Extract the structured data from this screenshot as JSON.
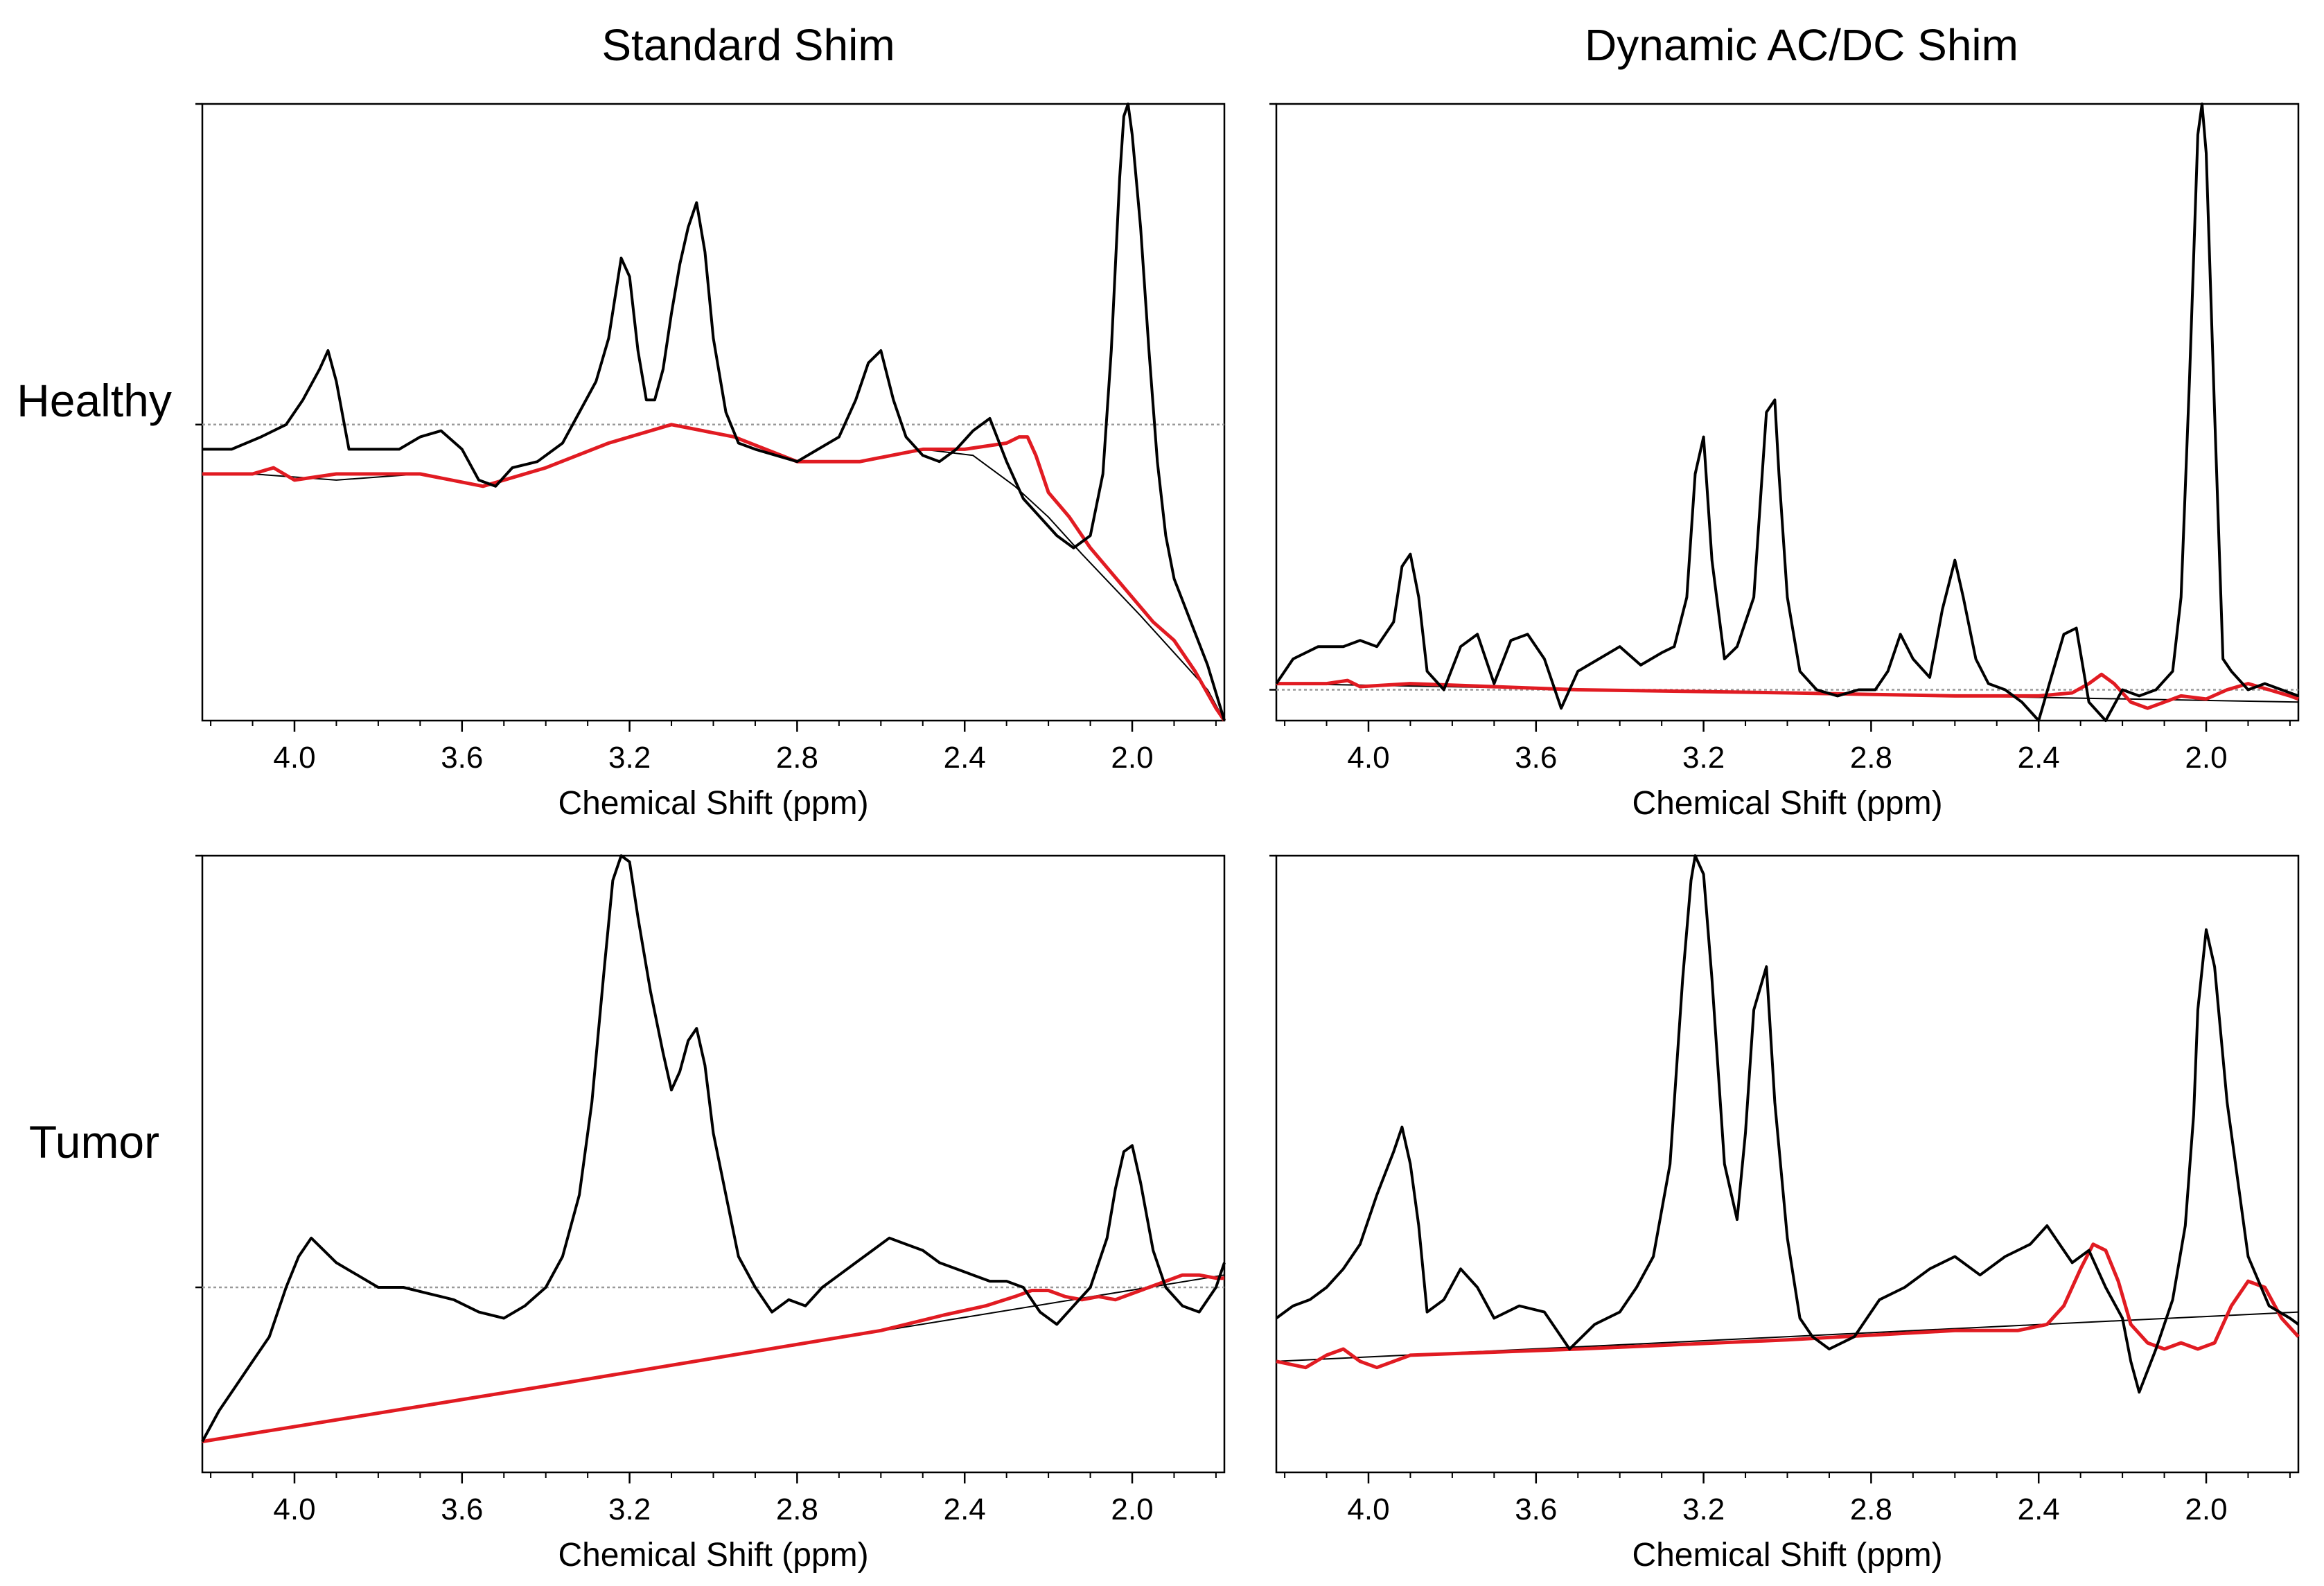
{
  "figure": {
    "columns": [
      "Standard Shim",
      "Dynamic AC/DC Shim"
    ],
    "rows": [
      "Healthy",
      "Tumor"
    ]
  },
  "colors": {
    "spectrum": "#000000",
    "fit": "#e11b22",
    "baseline": "#000000",
    "reference": "#999999",
    "axis": "#000000"
  },
  "chart_data": [
    {
      "type": "line",
      "panel": "healthy-standard",
      "title": "Standard Shim",
      "row": "Healthy",
      "xlabel": "Chemical Shift (ppm)",
      "ylabel": "",
      "xlim": [
        4.22,
        1.78
      ],
      "ylim": [
        0,
        1.0
      ],
      "xticks": [
        4.0,
        3.6,
        3.2,
        2.8,
        2.4,
        2.0
      ],
      "reference_y": 0.48,
      "series": [
        {
          "name": "spectrum",
          "x": [
            4.22,
            4.15,
            4.08,
            4.02,
            3.98,
            3.94,
            3.92,
            3.9,
            3.87,
            3.82,
            3.75,
            3.7,
            3.65,
            3.6,
            3.56,
            3.52,
            3.48,
            3.42,
            3.36,
            3.32,
            3.28,
            3.25,
            3.22,
            3.2,
            3.18,
            3.16,
            3.14,
            3.12,
            3.1,
            3.08,
            3.06,
            3.04,
            3.02,
            3.0,
            2.97,
            2.94,
            2.9,
            2.85,
            2.8,
            2.75,
            2.7,
            2.66,
            2.63,
            2.6,
            2.57,
            2.54,
            2.5,
            2.46,
            2.42,
            2.38,
            2.34,
            2.3,
            2.26,
            2.22,
            2.18,
            2.14,
            2.1,
            2.07,
            2.05,
            2.03,
            2.02,
            2.01,
            2.0,
            1.98,
            1.96,
            1.94,
            1.92,
            1.9,
            1.86,
            1.82,
            1.78
          ],
          "values": [
            0.44,
            0.44,
            0.46,
            0.48,
            0.52,
            0.57,
            0.6,
            0.55,
            0.44,
            0.44,
            0.44,
            0.46,
            0.47,
            0.44,
            0.39,
            0.38,
            0.41,
            0.42,
            0.45,
            0.5,
            0.55,
            0.62,
            0.75,
            0.72,
            0.6,
            0.52,
            0.52,
            0.57,
            0.66,
            0.74,
            0.8,
            0.84,
            0.76,
            0.62,
            0.5,
            0.45,
            0.44,
            0.43,
            0.42,
            0.44,
            0.46,
            0.52,
            0.58,
            0.6,
            0.52,
            0.46,
            0.43,
            0.42,
            0.44,
            0.47,
            0.49,
            0.42,
            0.36,
            0.33,
            0.3,
            0.28,
            0.3,
            0.4,
            0.6,
            0.88,
            0.98,
            1.0,
            0.95,
            0.8,
            0.6,
            0.42,
            0.3,
            0.23,
            0.16,
            0.09,
            0.0
          ]
        },
        {
          "name": "baseline",
          "x": [
            4.22,
            4.1,
            3.9,
            3.7,
            3.55,
            3.4,
            3.25,
            3.1,
            2.95,
            2.8,
            2.65,
            2.5,
            2.38,
            2.28,
            2.2,
            2.12,
            2.05,
            1.98,
            1.9,
            1.82,
            1.78
          ],
          "values": [
            0.4,
            0.4,
            0.39,
            0.4,
            0.38,
            0.41,
            0.45,
            0.48,
            0.46,
            0.42,
            0.42,
            0.44,
            0.43,
            0.38,
            0.33,
            0.27,
            0.22,
            0.17,
            0.11,
            0.05,
            0.0
          ]
        },
        {
          "name": "fit",
          "x": [
            4.22,
            4.1,
            4.05,
            4.0,
            3.9,
            3.7,
            3.55,
            3.4,
            3.25,
            3.1,
            2.95,
            2.8,
            2.65,
            2.5,
            2.4,
            2.3,
            2.27,
            2.25,
            2.23,
            2.2,
            2.15,
            2.1,
            2.05,
            2.0,
            1.95,
            1.9,
            1.85,
            1.8,
            1.78
          ],
          "values": [
            0.4,
            0.4,
            0.41,
            0.39,
            0.4,
            0.4,
            0.38,
            0.41,
            0.45,
            0.48,
            0.46,
            0.42,
            0.42,
            0.44,
            0.44,
            0.45,
            0.46,
            0.46,
            0.43,
            0.37,
            0.33,
            0.28,
            0.24,
            0.2,
            0.16,
            0.13,
            0.08,
            0.02,
            0.0
          ]
        }
      ]
    },
    {
      "type": "line",
      "panel": "healthy-dynamic",
      "title": "Dynamic AC/DC Shim",
      "row": "Healthy",
      "xlabel": "Chemical Shift (ppm)",
      "ylabel": "",
      "xlim": [
        4.22,
        1.78
      ],
      "ylim": [
        0,
        1.0
      ],
      "xticks": [
        4.0,
        3.6,
        3.2,
        2.8,
        2.4,
        2.0
      ],
      "reference_y": 0.05,
      "series": [
        {
          "name": "spectrum",
          "x": [
            4.22,
            4.18,
            4.12,
            4.06,
            4.02,
            3.98,
            3.94,
            3.92,
            3.9,
            3.88,
            3.86,
            3.82,
            3.78,
            3.74,
            3.7,
            3.66,
            3.62,
            3.58,
            3.54,
            3.5,
            3.45,
            3.4,
            3.35,
            3.3,
            3.27,
            3.24,
            3.22,
            3.2,
            3.18,
            3.15,
            3.12,
            3.08,
            3.05,
            3.03,
            3.02,
            3.0,
            2.97,
            2.93,
            2.88,
            2.83,
            2.79,
            2.76,
            2.73,
            2.7,
            2.66,
            2.63,
            2.6,
            2.58,
            2.55,
            2.52,
            2.48,
            2.44,
            2.4,
            2.37,
            2.34,
            2.31,
            2.28,
            2.24,
            2.2,
            2.16,
            2.12,
            2.08,
            2.06,
            2.04,
            2.02,
            2.01,
            2.0,
            1.98,
            1.96,
            1.94,
            1.9,
            1.86,
            1.82,
            1.78
          ],
          "values": [
            0.06,
            0.1,
            0.12,
            0.12,
            0.13,
            0.12,
            0.16,
            0.25,
            0.27,
            0.2,
            0.08,
            0.05,
            0.12,
            0.14,
            0.06,
            0.13,
            0.14,
            0.1,
            0.02,
            0.08,
            0.1,
            0.12,
            0.09,
            0.11,
            0.12,
            0.2,
            0.4,
            0.46,
            0.26,
            0.1,
            0.12,
            0.2,
            0.5,
            0.52,
            0.4,
            0.2,
            0.08,
            0.05,
            0.04,
            0.05,
            0.05,
            0.08,
            0.14,
            0.1,
            0.07,
            0.18,
            0.26,
            0.2,
            0.1,
            0.06,
            0.05,
            0.03,
            0.0,
            0.07,
            0.14,
            0.15,
            0.03,
            0.0,
            0.05,
            0.04,
            0.05,
            0.08,
            0.2,
            0.55,
            0.95,
            1.0,
            0.92,
            0.5,
            0.1,
            0.08,
            0.05,
            0.06,
            0.05,
            0.04
          ]
        },
        {
          "name": "baseline",
          "x": [
            4.22,
            1.78
          ],
          "values": [
            0.06,
            0.03
          ]
        },
        {
          "name": "fit",
          "x": [
            4.22,
            4.1,
            4.05,
            4.02,
            3.9,
            3.5,
            3.0,
            2.6,
            2.4,
            2.32,
            2.28,
            2.25,
            2.22,
            2.18,
            2.14,
            2.1,
            2.06,
            2.0,
            1.95,
            1.9,
            1.85,
            1.8,
            1.78
          ],
          "values": [
            0.06,
            0.06,
            0.065,
            0.055,
            0.06,
            0.05,
            0.045,
            0.04,
            0.04,
            0.045,
            0.06,
            0.075,
            0.06,
            0.03,
            0.02,
            0.03,
            0.04,
            0.035,
            0.05,
            0.06,
            0.05,
            0.04,
            0.035
          ]
        }
      ]
    },
    {
      "type": "line",
      "panel": "tumor-standard",
      "title": "Standard Shim",
      "row": "Tumor",
      "xlabel": "Chemical Shift (ppm)",
      "ylabel": "",
      "xlim": [
        4.22,
        1.78
      ],
      "ylim": [
        0,
        1.0
      ],
      "xticks": [
        4.0,
        3.6,
        3.2,
        2.8,
        2.4,
        2.0
      ],
      "reference_y": 0.3,
      "series": [
        {
          "name": "spectrum",
          "x": [
            4.22,
            4.18,
            4.14,
            4.1,
            4.06,
            4.02,
            3.99,
            3.96,
            3.93,
            3.9,
            3.85,
            3.8,
            3.74,
            3.68,
            3.62,
            3.56,
            3.5,
            3.45,
            3.4,
            3.36,
            3.32,
            3.29,
            3.26,
            3.24,
            3.22,
            3.2,
            3.18,
            3.15,
            3.12,
            3.1,
            3.08,
            3.06,
            3.04,
            3.02,
            3.0,
            2.97,
            2.94,
            2.9,
            2.86,
            2.82,
            2.78,
            2.74,
            2.7,
            2.66,
            2.62,
            2.58,
            2.54,
            2.5,
            2.46,
            2.42,
            2.38,
            2.34,
            2.3,
            2.26,
            2.22,
            2.18,
            2.14,
            2.1,
            2.06,
            2.04,
            2.02,
            2.0,
            1.98,
            1.95,
            1.92,
            1.88,
            1.84,
            1.8,
            1.78
          ],
          "values": [
            0.05,
            0.1,
            0.14,
            0.18,
            0.22,
            0.3,
            0.35,
            0.38,
            0.36,
            0.34,
            0.32,
            0.3,
            0.3,
            0.29,
            0.28,
            0.26,
            0.25,
            0.27,
            0.3,
            0.35,
            0.45,
            0.6,
            0.82,
            0.96,
            1.0,
            0.99,
            0.9,
            0.78,
            0.68,
            0.62,
            0.65,
            0.7,
            0.72,
            0.66,
            0.55,
            0.45,
            0.35,
            0.3,
            0.26,
            0.28,
            0.27,
            0.3,
            0.32,
            0.34,
            0.36,
            0.38,
            0.37,
            0.36,
            0.34,
            0.33,
            0.32,
            0.31,
            0.31,
            0.3,
            0.26,
            0.24,
            0.27,
            0.3,
            0.38,
            0.46,
            0.52,
            0.53,
            0.47,
            0.36,
            0.3,
            0.27,
            0.26,
            0.3,
            0.34
          ]
        },
        {
          "name": "baseline",
          "x": [
            4.22,
            1.78
          ],
          "values": [
            0.05,
            0.32
          ]
        },
        {
          "name": "fit",
          "x": [
            4.22,
            3.4,
            2.6,
            2.45,
            2.35,
            2.28,
            2.24,
            2.2,
            2.16,
            2.12,
            2.08,
            2.04,
            2.0,
            1.96,
            1.92,
            1.88,
            1.84,
            1.8,
            1.78
          ],
          "values": [
            0.05,
            0.14,
            0.23,
            0.255,
            0.27,
            0.285,
            0.295,
            0.295,
            0.285,
            0.28,
            0.285,
            0.28,
            0.29,
            0.3,
            0.31,
            0.32,
            0.32,
            0.315,
            0.315
          ]
        }
      ]
    },
    {
      "type": "line",
      "panel": "tumor-dynamic",
      "title": "Dynamic AC/DC Shim",
      "row": "Tumor",
      "xlabel": "Chemical Shift (ppm)",
      "ylabel": "",
      "xlim": [
        4.22,
        1.78
      ],
      "ylim": [
        0,
        1.0
      ],
      "xticks": [
        4.0,
        3.6,
        3.2,
        2.8,
        2.4,
        2.0
      ],
      "reference_y": null,
      "series": [
        {
          "name": "spectrum",
          "x": [
            4.22,
            4.18,
            4.14,
            4.1,
            4.06,
            4.02,
            3.98,
            3.94,
            3.92,
            3.9,
            3.88,
            3.86,
            3.82,
            3.78,
            3.74,
            3.7,
            3.64,
            3.58,
            3.52,
            3.46,
            3.4,
            3.36,
            3.32,
            3.28,
            3.25,
            3.23,
            3.22,
            3.2,
            3.18,
            3.15,
            3.12,
            3.1,
            3.08,
            3.05,
            3.03,
            3.0,
            2.97,
            2.94,
            2.9,
            2.84,
            2.78,
            2.72,
            2.66,
            2.6,
            2.54,
            2.48,
            2.42,
            2.38,
            2.35,
            2.32,
            2.28,
            2.24,
            2.2,
            2.18,
            2.16,
            2.12,
            2.08,
            2.05,
            2.03,
            2.02,
            2.0,
            1.98,
            1.95,
            1.9,
            1.85,
            1.8,
            1.78
          ],
          "values": [
            0.25,
            0.27,
            0.28,
            0.3,
            0.33,
            0.37,
            0.45,
            0.52,
            0.56,
            0.5,
            0.4,
            0.26,
            0.28,
            0.33,
            0.3,
            0.25,
            0.27,
            0.26,
            0.2,
            0.24,
            0.26,
            0.3,
            0.35,
            0.5,
            0.8,
            0.96,
            1.0,
            0.97,
            0.8,
            0.5,
            0.41,
            0.55,
            0.75,
            0.82,
            0.6,
            0.38,
            0.25,
            0.22,
            0.2,
            0.22,
            0.28,
            0.3,
            0.33,
            0.35,
            0.32,
            0.35,
            0.37,
            0.4,
            0.37,
            0.34,
            0.36,
            0.3,
            0.25,
            0.18,
            0.13,
            0.2,
            0.28,
            0.4,
            0.58,
            0.75,
            0.88,
            0.82,
            0.6,
            0.35,
            0.27,
            0.25,
            0.24
          ]
        },
        {
          "name": "baseline",
          "x": [
            4.22,
            1.78
          ],
          "values": [
            0.18,
            0.26
          ]
        },
        {
          "name": "fit",
          "x": [
            4.22,
            4.15,
            4.1,
            4.06,
            4.02,
            3.98,
            3.9,
            3.5,
            3.0,
            2.6,
            2.45,
            2.38,
            2.34,
            2.3,
            2.27,
            2.24,
            2.21,
            2.18,
            2.14,
            2.1,
            2.06,
            2.02,
            1.98,
            1.94,
            1.9,
            1.86,
            1.82,
            1.78
          ],
          "values": [
            0.18,
            0.17,
            0.19,
            0.2,
            0.18,
            0.17,
            0.19,
            0.2,
            0.215,
            0.23,
            0.23,
            0.24,
            0.27,
            0.33,
            0.37,
            0.36,
            0.31,
            0.24,
            0.21,
            0.2,
            0.21,
            0.2,
            0.21,
            0.27,
            0.31,
            0.3,
            0.25,
            0.22
          ]
        }
      ]
    }
  ]
}
